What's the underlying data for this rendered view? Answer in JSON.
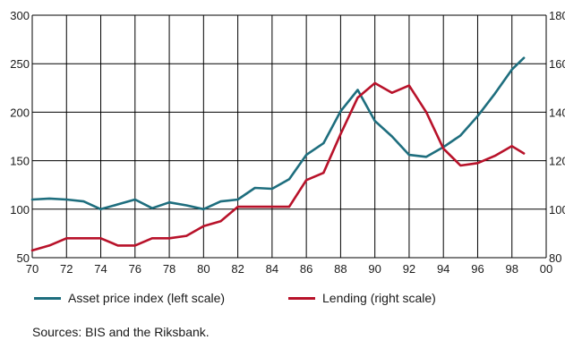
{
  "chart_data": {
    "type": "line",
    "x_tick_labels": [
      "70",
      "72",
      "74",
      "76",
      "78",
      "80",
      "82",
      "84",
      "86",
      "88",
      "90",
      "92",
      "94",
      "96",
      "98",
      "00"
    ],
    "y_left": {
      "lim": [
        50,
        300
      ],
      "ticks": [
        50,
        100,
        150,
        200,
        250,
        300
      ]
    },
    "y_right": {
      "lim": [
        80,
        180
      ],
      "ticks": [
        80,
        100,
        120,
        140,
        160,
        180
      ]
    },
    "grid": true,
    "legend_position": "bottom",
    "series": [
      {
        "name": "Asset price index (left scale)",
        "axis": "left",
        "color": "#1e6e7e",
        "x": [
          1970,
          1971,
          1972,
          1973,
          1974,
          1975,
          1976,
          1977,
          1978,
          1979,
          1980,
          1981,
          1982,
          1983,
          1984,
          1985,
          1986,
          1987,
          1988,
          1989,
          1990,
          1991,
          1992,
          1993,
          1994,
          1995,
          1996,
          1997,
          1998,
          1998.7
        ],
        "y": [
          110,
          111,
          110,
          108,
          100,
          105,
          110,
          101,
          107,
          104,
          100,
          108,
          110,
          122,
          121,
          131,
          156,
          168,
          201,
          223,
          191,
          175,
          156,
          154,
          164,
          176,
          196,
          219,
          244,
          256
        ]
      },
      {
        "name": "Lending (right scale)",
        "axis": "right",
        "color": "#b8122a",
        "x": [
          1970,
          1971,
          1972,
          1973,
          1974,
          1975,
          1976,
          1977,
          1978,
          1979,
          1980,
          1981,
          1982,
          1983,
          1984,
          1985,
          1986,
          1987,
          1988,
          1989,
          1990,
          1991,
          1992,
          1993,
          1994,
          1995,
          1996,
          1997,
          1998,
          1998.7
        ],
        "y": [
          83,
          85,
          88,
          88,
          88,
          85,
          85,
          88,
          88,
          89,
          93,
          95,
          101,
          101,
          101,
          101,
          112,
          115,
          131,
          146,
          152,
          148,
          151,
          140,
          125,
          118,
          119,
          122,
          126,
          123
        ]
      }
    ]
  },
  "source_note": "Sources: BIS and the Riksbank."
}
